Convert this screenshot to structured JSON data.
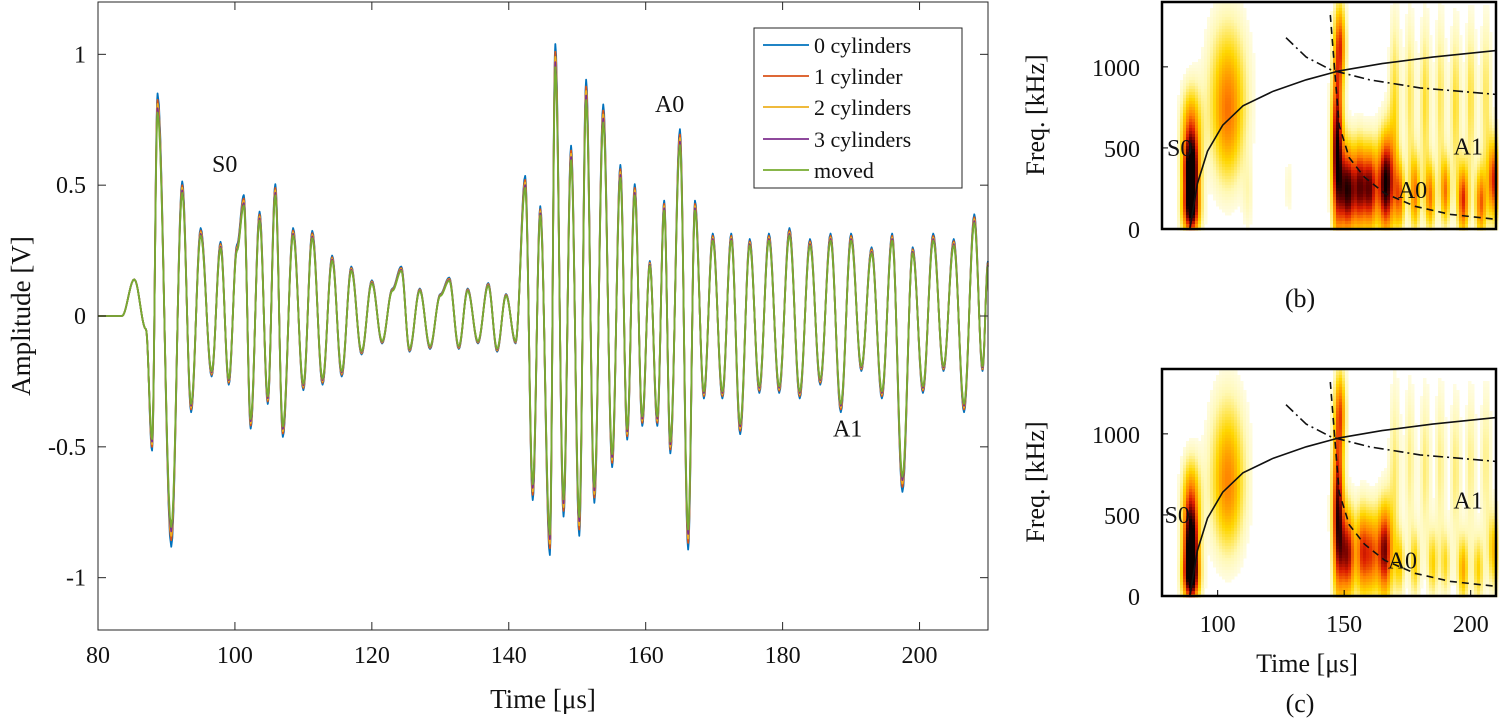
{
  "chart_data": [
    {
      "type": "line",
      "xlabel": "Time [μs]",
      "ylabel": "Amplitude [V]",
      "xlim": [
        80,
        210
      ],
      "ylim": [
        -1.2,
        1.2
      ],
      "x_ticks": [
        80,
        100,
        120,
        140,
        160,
        180,
        200
      ],
      "y_ticks": [
        -1,
        -0.5,
        0,
        0.5,
        1
      ],
      "x_tick_labels": [
        "80",
        "100",
        "120",
        "140",
        "160",
        "180",
        "200"
      ],
      "y_tick_labels": [
        "-1",
        "-0.5",
        "0",
        "0.5",
        "1"
      ],
      "grid": false,
      "legend_position": "top-right",
      "annotations": [
        {
          "text": "S0",
          "x": 98.5,
          "y": 0.55
        },
        {
          "text": "A0",
          "x": 163.5,
          "y": 0.78
        },
        {
          "text": "A1",
          "x": 189.5,
          "y": -0.46
        }
      ],
      "series": [
        {
          "name": "0 cylinders",
          "color": "#0072BD",
          "scale": 1.05
        },
        {
          "name": "1 cylinder",
          "color": "#D95319",
          "scale": 1.02
        },
        {
          "name": "2 cylinders",
          "color": "#EDB120",
          "scale": 1.0
        },
        {
          "name": "3 cylinders",
          "color": "#7E2F8E",
          "scale": 0.98
        },
        {
          "name": "moved",
          "color": "#77AC30",
          "scale": 0.96
        }
      ],
      "peaks": [
        [
          88.7,
          0.81
        ],
        [
          90.7,
          -0.84
        ],
        [
          92.3,
          0.49
        ],
        [
          93.6,
          -0.35
        ],
        [
          95,
          0.32
        ],
        [
          96.6,
          -0.22
        ],
        [
          97.9,
          0.27
        ],
        [
          99.1,
          -0.25
        ],
        [
          100.3,
          0.26
        ],
        [
          101.3,
          0.44
        ],
        [
          102.3,
          -0.41
        ],
        [
          103.6,
          0.38
        ],
        [
          104.8,
          -0.32
        ],
        [
          105.9,
          0.48
        ],
        [
          107,
          -0.44
        ],
        [
          108.5,
          0.32
        ],
        [
          110,
          -0.27
        ],
        [
          111.3,
          0.31
        ],
        [
          112.8,
          -0.25
        ],
        [
          114.2,
          0.22
        ],
        [
          115.6,
          -0.22
        ],
        [
          117,
          0.18
        ],
        [
          118.5,
          -0.14
        ],
        [
          120,
          0.13
        ],
        [
          121.5,
          -0.1
        ],
        [
          123,
          0.1
        ],
        [
          124.3,
          0.18
        ],
        [
          125.5,
          -0.13
        ],
        [
          127,
          0.1
        ],
        [
          128.5,
          -0.12
        ],
        [
          130,
          0.08
        ],
        [
          131.3,
          0.14
        ],
        [
          132.7,
          -0.12
        ],
        [
          134,
          0.1
        ],
        [
          135.5,
          -0.1
        ],
        [
          137,
          0.12
        ],
        [
          138.3,
          -0.13
        ],
        [
          139.6,
          0.08
        ],
        [
          141,
          -0.1
        ],
        [
          142.4,
          0.51
        ],
        [
          143.5,
          -0.67
        ],
        [
          144.6,
          0.4
        ],
        [
          146,
          -0.87
        ],
        [
          146.8,
          0.99
        ],
        [
          148,
          -0.73
        ],
        [
          149.1,
          0.62
        ],
        [
          150.3,
          -0.8
        ],
        [
          151.3,
          0.86
        ],
        [
          152.5,
          -0.68
        ],
        [
          153.8,
          0.77
        ],
        [
          155.1,
          -0.55
        ],
        [
          156.3,
          0.55
        ],
        [
          157.3,
          -0.45
        ],
        [
          158.4,
          0.48
        ],
        [
          159.5,
          -0.4
        ],
        [
          160.6,
          0.2
        ],
        [
          161.7,
          -0.4
        ],
        [
          162.7,
          0.42
        ],
        [
          163.6,
          -0.5
        ],
        [
          165,
          0.68
        ],
        [
          166.2,
          -0.85
        ],
        [
          167.2,
          0.42
        ],
        [
          168.5,
          -0.3
        ],
        [
          169.8,
          0.3
        ],
        [
          171.2,
          -0.3
        ],
        [
          172.5,
          0.3
        ],
        [
          173.8,
          -0.43
        ],
        [
          175.2,
          0.28
        ],
        [
          176.6,
          -0.28
        ],
        [
          178,
          0.3
        ],
        [
          179.5,
          -0.28
        ],
        [
          181,
          0.32
        ],
        [
          182.5,
          -0.3
        ],
        [
          184,
          0.28
        ],
        [
          185.5,
          -0.25
        ],
        [
          187,
          0.3
        ],
        [
          188.5,
          -0.35
        ],
        [
          190,
          0.3
        ],
        [
          191.5,
          -0.2
        ],
        [
          193,
          0.25
        ],
        [
          194.5,
          -0.3
        ],
        [
          196,
          0.3
        ],
        [
          197.5,
          -0.64
        ],
        [
          199,
          0.25
        ],
        [
          200.5,
          -0.28
        ],
        [
          202,
          0.3
        ],
        [
          203.5,
          -0.2
        ],
        [
          205,
          0.28
        ],
        [
          206.5,
          -0.35
        ],
        [
          208,
          0.37
        ],
        [
          209.2,
          -0.2
        ],
        [
          210,
          0.2
        ]
      ]
    },
    {
      "type": "heatmap",
      "panel_label": "(b)",
      "ylabel": "Freq. [kHz]",
      "xlim": [
        78,
        210
      ],
      "ylim": [
        0,
        1400
      ],
      "y_ticks": [
        0,
        500,
        1000
      ],
      "y_tick_labels": [
        "0",
        "500",
        "1000"
      ],
      "annotations": [
        {
          "text": "S0",
          "t": 85,
          "f": 450
        },
        {
          "text": "A1",
          "t": 199,
          "f": 460
        },
        {
          "text": "A0",
          "t": 177,
          "f": 190
        }
      ],
      "curves": {
        "S0": {
          "t": [
            89,
            92,
            96,
            102,
            110,
            122,
            135,
            148,
            165,
            185,
            210
          ],
          "f": [
            0,
            280,
            480,
            640,
            760,
            850,
            920,
            975,
            1020,
            1060,
            1100
          ]
        },
        "A0": {
          "t": [
            144.5,
            148,
            152,
            158,
            166,
            178,
            192,
            210
          ],
          "f": [
            1320,
            640,
            440,
            320,
            220,
            140,
            90,
            60
          ]
        },
        "A1": {
          "t": [
            127,
            135,
            145,
            160,
            180,
            210
          ],
          "f": [
            1180,
            1060,
            980,
            920,
            870,
            830
          ]
        }
      },
      "blobs": [
        {
          "t": 89.5,
          "f": 340,
          "st": 2.3,
          "sf": 150,
          "a": 1.0
        },
        {
          "t": 89.5,
          "f": 620,
          "st": 2.8,
          "sf": 180,
          "a": 0.55
        },
        {
          "t": 89.5,
          "f": 100,
          "st": 2.5,
          "sf": 110,
          "a": 0.8
        },
        {
          "t": 104,
          "f": 900,
          "st": 5.5,
          "sf": 300,
          "a": 0.38
        },
        {
          "t": 104,
          "f": 580,
          "st": 4.5,
          "sf": 260,
          "a": 0.3
        },
        {
          "t": 112,
          "f": 200,
          "st": 1.5,
          "sf": 160,
          "a": 0.12
        },
        {
          "t": 128,
          "f": 260,
          "st": 1.2,
          "sf": 150,
          "a": 0.1
        },
        {
          "t": 147.2,
          "f": 500,
          "st": 1.6,
          "sf": 380,
          "a": 0.95
        },
        {
          "t": 148.5,
          "f": 1150,
          "st": 1.6,
          "sf": 180,
          "a": 0.55
        },
        {
          "t": 151.5,
          "f": 240,
          "st": 2.3,
          "sf": 200,
          "a": 0.95
        },
        {
          "t": 156,
          "f": 260,
          "st": 1.6,
          "sf": 200,
          "a": 0.6
        },
        {
          "t": 160,
          "f": 250,
          "st": 2.2,
          "sf": 190,
          "a": 0.85
        },
        {
          "t": 166.5,
          "f": 280,
          "st": 2.3,
          "sf": 220,
          "a": 1.0
        },
        {
          "t": 172,
          "f": 200,
          "st": 1.5,
          "sf": 150,
          "a": 0.55
        },
        {
          "t": 178,
          "f": 220,
          "st": 1.5,
          "sf": 170,
          "a": 0.55
        },
        {
          "t": 184,
          "f": 200,
          "st": 1.5,
          "sf": 150,
          "a": 0.55
        },
        {
          "t": 190,
          "f": 230,
          "st": 1.4,
          "sf": 150,
          "a": 0.55
        },
        {
          "t": 197,
          "f": 180,
          "st": 1.6,
          "sf": 160,
          "a": 0.7
        },
        {
          "t": 204,
          "f": 160,
          "st": 1.6,
          "sf": 160,
          "a": 0.6
        },
        {
          "t": 209,
          "f": 300,
          "st": 1.6,
          "sf": 180,
          "a": 0.7
        },
        {
          "t": 170,
          "f": 780,
          "st": 1.6,
          "sf": 380,
          "a": 0.3
        },
        {
          "t": 176,
          "f": 820,
          "st": 1.5,
          "sf": 350,
          "a": 0.25
        },
        {
          "t": 182,
          "f": 780,
          "st": 1.5,
          "sf": 350,
          "a": 0.3
        },
        {
          "t": 188,
          "f": 800,
          "st": 1.5,
          "sf": 360,
          "a": 0.25
        },
        {
          "t": 194,
          "f": 760,
          "st": 1.5,
          "sf": 340,
          "a": 0.3
        },
        {
          "t": 200,
          "f": 800,
          "st": 1.5,
          "sf": 340,
          "a": 0.28
        },
        {
          "t": 206,
          "f": 820,
          "st": 1.5,
          "sf": 340,
          "a": 0.25
        }
      ]
    },
    {
      "type": "heatmap",
      "panel_label": "(c)",
      "xlabel": "Time [μs]",
      "ylabel": "Freq. [kHz]",
      "xlim": [
        78,
        210
      ],
      "ylim": [
        0,
        1400
      ],
      "x_ticks": [
        100,
        150,
        200
      ],
      "x_tick_labels": [
        "100",
        "150",
        "200"
      ],
      "y_ticks": [
        0,
        500,
        1000
      ],
      "y_tick_labels": [
        "0",
        "500",
        "1000"
      ],
      "annotations": [
        {
          "text": "S0",
          "t": 84,
          "f": 450
        },
        {
          "text": "A1",
          "t": 199,
          "f": 540
        },
        {
          "text": "A0",
          "t": 173,
          "f": 170
        }
      ],
      "curves": {
        "S0": {
          "t": [
            89,
            92,
            96,
            102,
            110,
            122,
            135,
            148,
            165,
            185,
            210
          ],
          "f": [
            0,
            280,
            480,
            640,
            760,
            850,
            920,
            975,
            1020,
            1060,
            1100
          ]
        },
        "A0": {
          "t": [
            144.5,
            148,
            152,
            158,
            166,
            178,
            192,
            210
          ],
          "f": [
            1320,
            640,
            440,
            320,
            220,
            140,
            90,
            60
          ]
        },
        "A1": {
          "t": [
            127,
            135,
            145,
            160,
            180,
            210
          ],
          "f": [
            1180,
            1060,
            980,
            920,
            870,
            830
          ]
        }
      },
      "blobs": [
        {
          "t": 89.5,
          "f": 320,
          "st": 2.2,
          "sf": 160,
          "a": 1.0
        },
        {
          "t": 89.5,
          "f": 620,
          "st": 2.6,
          "sf": 170,
          "a": 0.5
        },
        {
          "t": 89.5,
          "f": 100,
          "st": 2.4,
          "sf": 110,
          "a": 0.8
        },
        {
          "t": 104,
          "f": 860,
          "st": 5.0,
          "sf": 300,
          "a": 0.35
        },
        {
          "t": 104,
          "f": 560,
          "st": 4.5,
          "sf": 250,
          "a": 0.28
        },
        {
          "t": 147.5,
          "f": 520,
          "st": 1.6,
          "sf": 360,
          "a": 0.9
        },
        {
          "t": 148.5,
          "f": 1150,
          "st": 1.6,
          "sf": 180,
          "a": 0.5
        },
        {
          "t": 151.5,
          "f": 260,
          "st": 2.2,
          "sf": 200,
          "a": 0.8
        },
        {
          "t": 157,
          "f": 270,
          "st": 1.6,
          "sf": 200,
          "a": 0.55
        },
        {
          "t": 160.5,
          "f": 260,
          "st": 2.0,
          "sf": 190,
          "a": 0.6
        },
        {
          "t": 166,
          "f": 280,
          "st": 2.2,
          "sf": 210,
          "a": 0.85
        },
        {
          "t": 172,
          "f": 200,
          "st": 1.4,
          "sf": 140,
          "a": 0.35
        },
        {
          "t": 178,
          "f": 200,
          "st": 1.4,
          "sf": 150,
          "a": 0.35
        },
        {
          "t": 185,
          "f": 200,
          "st": 1.4,
          "sf": 150,
          "a": 0.35
        },
        {
          "t": 190,
          "f": 200,
          "st": 1.4,
          "sf": 140,
          "a": 0.3
        },
        {
          "t": 197,
          "f": 160,
          "st": 1.5,
          "sf": 150,
          "a": 0.45
        },
        {
          "t": 203,
          "f": 160,
          "st": 1.5,
          "sf": 150,
          "a": 0.35
        },
        {
          "t": 209,
          "f": 280,
          "st": 1.5,
          "sf": 170,
          "a": 0.4
        },
        {
          "t": 170,
          "f": 780,
          "st": 1.6,
          "sf": 380,
          "a": 0.22
        },
        {
          "t": 176,
          "f": 820,
          "st": 1.5,
          "sf": 350,
          "a": 0.2
        },
        {
          "t": 182,
          "f": 780,
          "st": 1.5,
          "sf": 350,
          "a": 0.22
        },
        {
          "t": 188,
          "f": 800,
          "st": 1.5,
          "sf": 360,
          "a": 0.2
        },
        {
          "t": 194,
          "f": 760,
          "st": 1.5,
          "sf": 340,
          "a": 0.22
        },
        {
          "t": 200,
          "f": 800,
          "st": 1.5,
          "sf": 340,
          "a": 0.2
        },
        {
          "t": 206,
          "f": 820,
          "st": 1.5,
          "sf": 340,
          "a": 0.2
        }
      ]
    }
  ]
}
